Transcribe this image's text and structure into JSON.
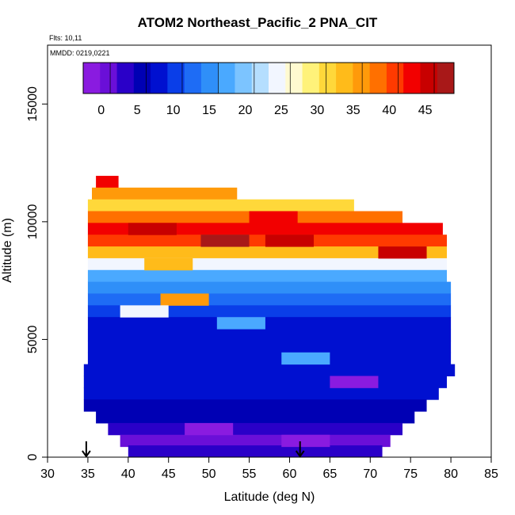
{
  "chart_data": {
    "type": "heatmap",
    "title": "ATOM2 Northeast_Pacific_2 PNA_CIT",
    "subtitle": "Flts: 10,11",
    "annotation": "MMDD: 0219,0221",
    "xlabel": "Latitude (deg N)",
    "ylabel": "Altitude (m)",
    "xlim": [
      30,
      85
    ],
    "ylim": [
      0,
      17500
    ],
    "x_ticks": [
      30,
      35,
      40,
      45,
      50,
      55,
      60,
      65,
      70,
      75,
      80,
      85
    ],
    "y_ticks": [
      0,
      5000,
      10000,
      15000
    ],
    "colorbar": {
      "ticks": [
        0,
        5,
        10,
        15,
        20,
        25,
        30,
        35,
        40,
        45
      ],
      "range": [
        -2.5,
        49
      ],
      "colors": [
        "#8a1be0",
        "#6a0fd8",
        "#2a00c8",
        "#0000b4",
        "#0010d0",
        "#0a3ee8",
        "#1e6cf5",
        "#2f8ff8",
        "#4aa9ff",
        "#7cc4ff",
        "#b5defe",
        "#f2f6ff",
        "#fffad0",
        "#fff27a",
        "#ffd83a",
        "#ffbb1a",
        "#ff9a0a",
        "#ff7000",
        "#ff3a00",
        "#f20000",
        "#c80000",
        "#a81818"
      ]
    },
    "grid": false,
    "legend": "colorbar-top",
    "layers": [
      {
        "alt": 11700,
        "x0": 36.0,
        "x1": 38.8,
        "v": 44
      },
      {
        "alt": 11200,
        "x0": 35.5,
        "x1": 53.5,
        "v": 36
      },
      {
        "alt": 10700,
        "x0": 35.0,
        "x1": 68.0,
        "v": 32
      },
      {
        "alt": 10200,
        "x0": 35.0,
        "x1": 74.0,
        "v": 38
      },
      {
        "alt": 9700,
        "x0": 35.0,
        "x1": 79.0,
        "v": 42
      },
      {
        "alt": 9200,
        "x0": 35.0,
        "x1": 79.5,
        "v": 40
      },
      {
        "alt": 8700,
        "x0": 35.0,
        "x1": 79.5,
        "v": 34
      },
      {
        "alt": 8200,
        "x0": 35.0,
        "x1": 79.5,
        "v": 24
      },
      {
        "alt": 7700,
        "x0": 35.0,
        "x1": 79.5,
        "v": 17
      },
      {
        "alt": 7200,
        "x0": 35.0,
        "x1": 80.0,
        "v": 14
      },
      {
        "alt": 6700,
        "x0": 35.0,
        "x1": 80.0,
        "v": 12
      },
      {
        "alt": 6200,
        "x0": 35.0,
        "x1": 80.0,
        "v": 10
      },
      {
        "alt": 5700,
        "x0": 35.0,
        "x1": 80.0,
        "v": 9
      },
      {
        "alt": 5200,
        "x0": 35.0,
        "x1": 80.0,
        "v": 8
      },
      {
        "alt": 4700,
        "x0": 35.0,
        "x1": 80.0,
        "v": 7
      },
      {
        "alt": 4200,
        "x0": 35.0,
        "x1": 80.0,
        "v": 9
      },
      {
        "alt": 3700,
        "x0": 34.5,
        "x1": 80.5,
        "v": 8
      },
      {
        "alt": 3200,
        "x0": 34.5,
        "x1": 79.5,
        "v": 9
      },
      {
        "alt": 2700,
        "x0": 34.5,
        "x1": 78.5,
        "v": 7
      },
      {
        "alt": 2200,
        "x0": 34.5,
        "x1": 77.0,
        "v": 6
      },
      {
        "alt": 1700,
        "x0": 36.0,
        "x1": 75.5,
        "v": 5
      },
      {
        "alt": 1200,
        "x0": 37.5,
        "x1": 74.0,
        "v": 3
      },
      {
        "alt": 700,
        "x0": 39.0,
        "x1": 72.5,
        "v": 2
      },
      {
        "alt": 250,
        "x0": 40.0,
        "x1": 71.5,
        "v": 3
      }
    ],
    "hotspots": [
      {
        "alt": 9700,
        "x": 43,
        "v": 46
      },
      {
        "alt": 9200,
        "x": 52,
        "v": 47
      },
      {
        "alt": 10200,
        "x": 58,
        "v": 44
      },
      {
        "alt": 9200,
        "x": 60,
        "v": 45
      },
      {
        "alt": 8700,
        "x": 74,
        "v": 46
      },
      {
        "alt": 8200,
        "x": 45,
        "v": 33
      },
      {
        "alt": 6700,
        "x": 47,
        "v": 36
      },
      {
        "alt": 6200,
        "x": 42,
        "v": 24
      },
      {
        "alt": 5700,
        "x": 54,
        "v": 18
      },
      {
        "alt": 4200,
        "x": 62,
        "v": 17
      },
      {
        "alt": 3200,
        "x": 68,
        "v": -1
      },
      {
        "alt": 1200,
        "x": 50,
        "v": -1
      },
      {
        "alt": 700,
        "x": 62,
        "v": -2
      }
    ],
    "markers": [
      {
        "x": 34.8,
        "label": "arrow"
      },
      {
        "x": 61.3,
        "label": "arrow"
      }
    ]
  }
}
